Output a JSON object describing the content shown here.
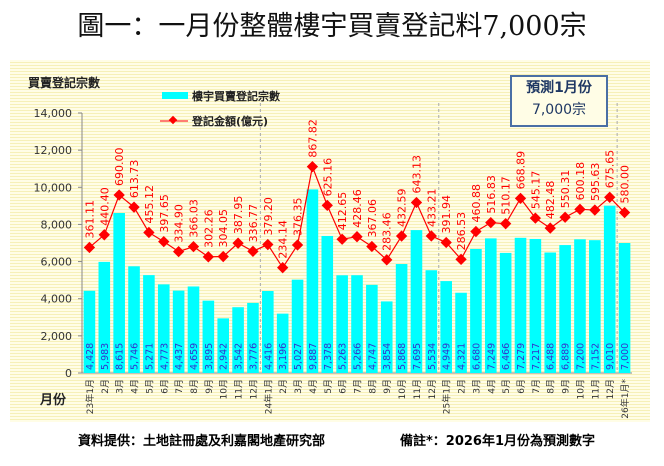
{
  "title": "圖一：一月份整體樓宇買賣登記料7,000宗",
  "forecast_box": {
    "line1": "預測1月份",
    "line2": "7,000宗"
  },
  "footer": {
    "source": "資料提供：土地註冊處及利嘉閣地產研究部",
    "note": "備註*：2026年1月份為預測數字"
  },
  "colors": {
    "bars": "#00ffff",
    "line": "#ff0000",
    "bar_labels": "#3333cc"
  },
  "chart_data": {
    "type": "bar+line",
    "ylabel": "買賣登記宗數",
    "xlabel": "月份",
    "ylim": [
      0,
      14000
    ],
    "yticks": [
      "0",
      "2,000",
      "4,000",
      "6,000",
      "8,000",
      "10,000",
      "12,000",
      "14,000"
    ],
    "legend_placement": "top-left",
    "categories": [
      "23年1月",
      "2月",
      "3月",
      "4月",
      "5月",
      "6月",
      "7月",
      "8月",
      "9月",
      "10月",
      "11月",
      "12月",
      "24年1月",
      "2月",
      "3月",
      "4月",
      "5月",
      "6月",
      "7月",
      "8月",
      "9月",
      "10月",
      "11月",
      "12月",
      "25年1月",
      "2月",
      "3月",
      "4月",
      "5月",
      "6月",
      "7月",
      "8月",
      "9月",
      "10月",
      "11月",
      "12月",
      "26年1月*"
    ],
    "series": [
      {
        "name": "樓宇買賣登記宗數",
        "type": "bar",
        "values": [
          4428,
          5983,
          8615,
          5746,
          5271,
          4773,
          4437,
          4659,
          3895,
          2942,
          3542,
          3776,
          4416,
          3196,
          5027,
          9887,
          7378,
          5263,
          5266,
          4747,
          3854,
          5868,
          7695,
          5534,
          4949,
          4321,
          6680,
          7249,
          6466,
          7279,
          7217,
          6488,
          6889,
          7200,
          7152,
          9010,
          7000
        ]
      },
      {
        "name": "登記金額(億元)",
        "type": "line",
        "values": [
          361.11,
          440.4,
          690.0,
          613.73,
          455.12,
          397.65,
          334.9,
          366.03,
          302.26,
          304.05,
          387.95,
          336.77,
          379.2,
          234.14,
          376.35,
          867.82,
          625.16,
          412.65,
          428.46,
          367.06,
          283.46,
          432.59,
          643.13,
          433.21,
          391.94,
          286.53,
          460.88,
          516.83,
          510.17,
          668.89,
          545.17,
          482.48,
          550.31,
          600.18,
          595.63,
          675.65,
          580.0
        ]
      }
    ]
  }
}
